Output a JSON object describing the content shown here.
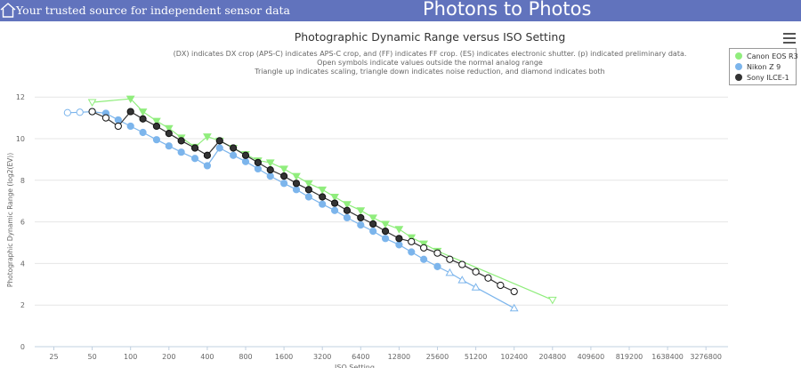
{
  "header": {
    "tagline": "Your trusted source for independent sensor data",
    "site_title": "Photons to Photos"
  },
  "subtitle_lines": [
    "(DX) indicates DX crop (APS-C) indicates APS-C crop, and (FF) indicates FF crop. (ES) indicates electronic shutter. (p) indicated preliminary data.",
    "Open symbols indicate values outside the normal analog range",
    "Triangle up indicates scaling, triangle down indicates noise reduction, and diamond indicates both"
  ],
  "chart_data": {
    "type": "line",
    "title": "Photographic Dynamic Range versus ISO Setting",
    "xlabel": "ISO Setting",
    "ylabel": "Photographic Dynamic Range (log2(EV))",
    "x_scale": "log2",
    "x_ticks": [
      "25",
      "50",
      "100",
      "200",
      "400",
      "800",
      "1600",
      "3200",
      "6400",
      "12800",
      "25600",
      "51200",
      "102400",
      "204800",
      "409600",
      "819200",
      "1638400",
      "3276800"
    ],
    "y_ticks": [
      0,
      2,
      4,
      6,
      8,
      10,
      12
    ],
    "ylim": [
      0,
      12.5
    ],
    "grid": true,
    "legend_position": "top-right",
    "series": [
      {
        "name": "Canon EOS R3",
        "color": "#90ed7d",
        "points": [
          {
            "iso": 50,
            "dr": 11.75,
            "marker": "triangle-down",
            "open": true
          },
          {
            "iso": 100,
            "dr": 11.92,
            "marker": "triangle-down",
            "open": false
          },
          {
            "iso": 125,
            "dr": 11.3,
            "marker": "triangle-down",
            "open": false
          },
          {
            "iso": 160,
            "dr": 10.85,
            "marker": "triangle-down",
            "open": false
          },
          {
            "iso": 200,
            "dr": 10.5,
            "marker": "triangle-down",
            "open": false
          },
          {
            "iso": 250,
            "dr": 10.05,
            "marker": "triangle-down",
            "open": false
          },
          {
            "iso": 320,
            "dr": 9.6,
            "marker": "triangle-down",
            "open": false
          },
          {
            "iso": 400,
            "dr": 10.1,
            "marker": "triangle-down",
            "open": false
          },
          {
            "iso": 500,
            "dr": 9.9,
            "marker": "triangle-down",
            "open": false
          },
          {
            "iso": 640,
            "dr": 9.55,
            "marker": "triangle-down",
            "open": false
          },
          {
            "iso": 800,
            "dr": 9.25,
            "marker": "triangle-down",
            "open": false
          },
          {
            "iso": 1000,
            "dr": 8.95,
            "marker": "triangle-down",
            "open": false
          },
          {
            "iso": 1250,
            "dr": 8.85,
            "marker": "triangle-down",
            "open": false
          },
          {
            "iso": 1600,
            "dr": 8.55,
            "marker": "triangle-down",
            "open": false
          },
          {
            "iso": 2000,
            "dr": 8.2,
            "marker": "triangle-down",
            "open": false
          },
          {
            "iso": 2500,
            "dr": 7.85,
            "marker": "triangle-down",
            "open": false
          },
          {
            "iso": 3200,
            "dr": 7.55,
            "marker": "triangle-down",
            "open": false
          },
          {
            "iso": 4000,
            "dr": 7.2,
            "marker": "triangle-down",
            "open": false
          },
          {
            "iso": 5000,
            "dr": 6.85,
            "marker": "triangle-down",
            "open": false
          },
          {
            "iso": 6400,
            "dr": 6.55,
            "marker": "triangle-down",
            "open": false
          },
          {
            "iso": 8000,
            "dr": 6.2,
            "marker": "triangle-down",
            "open": false
          },
          {
            "iso": 10000,
            "dr": 5.9,
            "marker": "triangle-down",
            "open": false
          },
          {
            "iso": 12800,
            "dr": 5.65,
            "marker": "triangle-down",
            "open": false
          },
          {
            "iso": 16000,
            "dr": 5.25,
            "marker": "triangle-down",
            "open": false
          },
          {
            "iso": 20000,
            "dr": 4.95,
            "marker": "triangle-down",
            "open": false
          },
          {
            "iso": 25600,
            "dr": 4.6,
            "marker": "triangle-down",
            "open": false
          },
          {
            "iso": 204800,
            "dr": 2.25,
            "marker": "triangle-down",
            "open": true
          }
        ]
      },
      {
        "name": "Nikon Z 9",
        "color": "#7cb5ec",
        "points": [
          {
            "iso": 32,
            "dr": 11.25,
            "marker": "circle",
            "open": true
          },
          {
            "iso": 40,
            "dr": 11.27,
            "marker": "circle",
            "open": true
          },
          {
            "iso": 50,
            "dr": 11.3,
            "marker": "circle",
            "open": true
          },
          {
            "iso": 64,
            "dr": 11.22,
            "marker": "circle",
            "open": false
          },
          {
            "iso": 80,
            "dr": 10.9,
            "marker": "circle",
            "open": false
          },
          {
            "iso": 100,
            "dr": 10.6,
            "marker": "circle",
            "open": false
          },
          {
            "iso": 125,
            "dr": 10.3,
            "marker": "circle",
            "open": false
          },
          {
            "iso": 160,
            "dr": 9.95,
            "marker": "circle",
            "open": false
          },
          {
            "iso": 200,
            "dr": 9.65,
            "marker": "circle",
            "open": false
          },
          {
            "iso": 250,
            "dr": 9.35,
            "marker": "circle",
            "open": false
          },
          {
            "iso": 320,
            "dr": 9.05,
            "marker": "circle",
            "open": false
          },
          {
            "iso": 400,
            "dr": 8.7,
            "marker": "circle",
            "open": false
          },
          {
            "iso": 500,
            "dr": 9.55,
            "marker": "circle",
            "open": false
          },
          {
            "iso": 640,
            "dr": 9.2,
            "marker": "circle",
            "open": false
          },
          {
            "iso": 800,
            "dr": 8.9,
            "marker": "circle",
            "open": false
          },
          {
            "iso": 1000,
            "dr": 8.55,
            "marker": "circle",
            "open": false
          },
          {
            "iso": 1250,
            "dr": 8.2,
            "marker": "circle",
            "open": false
          },
          {
            "iso": 1600,
            "dr": 7.85,
            "marker": "circle",
            "open": false
          },
          {
            "iso": 2000,
            "dr": 7.55,
            "marker": "circle",
            "open": false
          },
          {
            "iso": 2500,
            "dr": 7.2,
            "marker": "circle",
            "open": false
          },
          {
            "iso": 3200,
            "dr": 6.85,
            "marker": "circle",
            "open": false
          },
          {
            "iso": 4000,
            "dr": 6.55,
            "marker": "circle",
            "open": false
          },
          {
            "iso": 5000,
            "dr": 6.2,
            "marker": "circle",
            "open": false
          },
          {
            "iso": 6400,
            "dr": 5.85,
            "marker": "circle",
            "open": false
          },
          {
            "iso": 8000,
            "dr": 5.55,
            "marker": "circle",
            "open": false
          },
          {
            "iso": 10000,
            "dr": 5.2,
            "marker": "circle",
            "open": false
          },
          {
            "iso": 12800,
            "dr": 4.9,
            "marker": "circle",
            "open": false
          },
          {
            "iso": 16000,
            "dr": 4.55,
            "marker": "circle",
            "open": false
          },
          {
            "iso": 20000,
            "dr": 4.2,
            "marker": "circle",
            "open": false
          },
          {
            "iso": 25600,
            "dr": 3.85,
            "marker": "circle",
            "open": false
          },
          {
            "iso": 32000,
            "dr": 3.55,
            "marker": "triangle-up",
            "open": true
          },
          {
            "iso": 40000,
            "dr": 3.2,
            "marker": "triangle-up",
            "open": true
          },
          {
            "iso": 51200,
            "dr": 2.85,
            "marker": "triangle-up",
            "open": true
          },
          {
            "iso": 102400,
            "dr": 1.85,
            "marker": "triangle-up",
            "open": true
          }
        ]
      },
      {
        "name": "Sony ILCE-1",
        "color": "#333333",
        "points": [
          {
            "iso": 50,
            "dr": 11.3,
            "marker": "circle",
            "open": true
          },
          {
            "iso": 64,
            "dr": 11.0,
            "marker": "circle",
            "open": true
          },
          {
            "iso": 80,
            "dr": 10.6,
            "marker": "circle",
            "open": true
          },
          {
            "iso": 100,
            "dr": 11.3,
            "marker": "circle",
            "open": false
          },
          {
            "iso": 125,
            "dr": 10.95,
            "marker": "circle",
            "open": false
          },
          {
            "iso": 160,
            "dr": 10.6,
            "marker": "circle",
            "open": false
          },
          {
            "iso": 200,
            "dr": 10.25,
            "marker": "circle",
            "open": false
          },
          {
            "iso": 250,
            "dr": 9.9,
            "marker": "circle",
            "open": false
          },
          {
            "iso": 320,
            "dr": 9.55,
            "marker": "circle",
            "open": false
          },
          {
            "iso": 400,
            "dr": 9.2,
            "marker": "circle",
            "open": false
          },
          {
            "iso": 500,
            "dr": 9.9,
            "marker": "circle",
            "open": false
          },
          {
            "iso": 640,
            "dr": 9.55,
            "marker": "circle",
            "open": false
          },
          {
            "iso": 800,
            "dr": 9.2,
            "marker": "circle",
            "open": false
          },
          {
            "iso": 1000,
            "dr": 8.85,
            "marker": "circle",
            "open": false
          },
          {
            "iso": 1250,
            "dr": 8.5,
            "marker": "circle",
            "open": false
          },
          {
            "iso": 1600,
            "dr": 8.2,
            "marker": "circle",
            "open": false
          },
          {
            "iso": 2000,
            "dr": 7.85,
            "marker": "circle",
            "open": false
          },
          {
            "iso": 2500,
            "dr": 7.55,
            "marker": "circle",
            "open": false
          },
          {
            "iso": 3200,
            "dr": 7.2,
            "marker": "circle",
            "open": false
          },
          {
            "iso": 4000,
            "dr": 6.9,
            "marker": "circle",
            "open": false
          },
          {
            "iso": 5000,
            "dr": 6.55,
            "marker": "circle",
            "open": false
          },
          {
            "iso": 6400,
            "dr": 6.2,
            "marker": "circle",
            "open": false
          },
          {
            "iso": 8000,
            "dr": 5.9,
            "marker": "circle",
            "open": false
          },
          {
            "iso": 10000,
            "dr": 5.55,
            "marker": "circle",
            "open": false
          },
          {
            "iso": 12800,
            "dr": 5.2,
            "marker": "circle",
            "open": false
          },
          {
            "iso": 16000,
            "dr": 5.05,
            "marker": "circle",
            "open": true
          },
          {
            "iso": 20000,
            "dr": 4.75,
            "marker": "circle",
            "open": true
          },
          {
            "iso": 25600,
            "dr": 4.5,
            "marker": "circle",
            "open": true
          },
          {
            "iso": 32000,
            "dr": 4.2,
            "marker": "circle",
            "open": true
          },
          {
            "iso": 40000,
            "dr": 3.95,
            "marker": "circle",
            "open": true
          },
          {
            "iso": 51200,
            "dr": 3.6,
            "marker": "circle",
            "open": true
          },
          {
            "iso": 64000,
            "dr": 3.3,
            "marker": "circle",
            "open": true
          },
          {
            "iso": 80000,
            "dr": 2.95,
            "marker": "circle",
            "open": true
          },
          {
            "iso": 102400,
            "dr": 2.65,
            "marker": "circle",
            "open": true
          }
        ]
      }
    ]
  }
}
